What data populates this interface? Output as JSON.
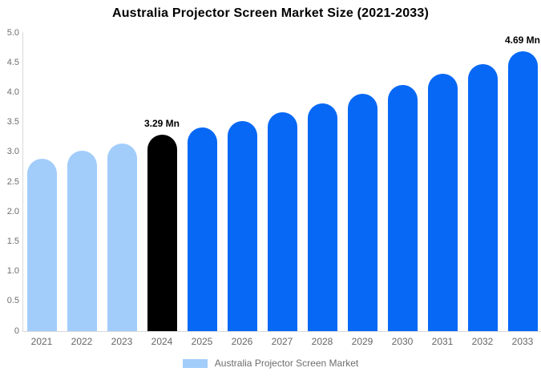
{
  "title": "Australia Projector Screen Market Size (2021-2033)",
  "chart_data": {
    "type": "bar",
    "title": "Australia Projector Screen Market Size (2021-2033)",
    "xlabel": "",
    "ylabel": "",
    "categories": [
      "2021",
      "2022",
      "2023",
      "2024",
      "2025",
      "2026",
      "2027",
      "2028",
      "2029",
      "2030",
      "2031",
      "2032",
      "2033"
    ],
    "values": [
      2.89,
      3.02,
      3.14,
      3.29,
      3.41,
      3.52,
      3.67,
      3.82,
      3.98,
      4.13,
      4.32,
      4.47,
      4.69
    ],
    "unit": "Mn",
    "bar_colors": [
      "#A2CDFB",
      "#A2CDFB",
      "#A2CDFB",
      "#000000",
      "#0668F5",
      "#0668F5",
      "#0668F5",
      "#0668F5",
      "#0668F5",
      "#0668F5",
      "#0668F5",
      "#0668F5",
      "#0668F5"
    ],
    "series_colors": {
      "historical": "#A2CDFB",
      "base_year": "#000000",
      "forecast": "#0668F5"
    },
    "annotations": [
      {
        "category": "2024",
        "text": "3.29 Mn"
      },
      {
        "category": "2033",
        "text": "4.69 Mn"
      }
    ],
    "ylim": [
      0,
      5.0
    ],
    "ytick_labels": [
      "0",
      "0.5",
      "1.0",
      "1.5",
      "2.0",
      "2.5",
      "3.0",
      "3.5",
      "4.0",
      "4.5",
      "5.0"
    ],
    "grid": false,
    "axis_color": "#d9d9d9",
    "tick_label_color": "#6e6e6e",
    "legend": {
      "position": "bottom",
      "entries": [
        {
          "label": "Australia Projector Screen Market",
          "color": "#A2CDFB"
        }
      ]
    }
  }
}
